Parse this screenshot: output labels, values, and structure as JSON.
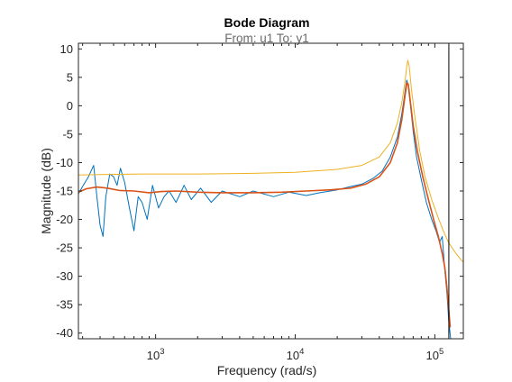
{
  "chart_data": {
    "type": "line",
    "title": "Bode Diagram",
    "subtitle": "From: u1  To: y1",
    "xlabel": "Frequency  (rad/s)",
    "ylabel": "Magnitude (dB)",
    "xscale": "log",
    "xlim": [
      280,
      160000
    ],
    "ylim": [
      -41,
      11
    ],
    "yticks": [
      10,
      5,
      0,
      -5,
      -10,
      -15,
      -20,
      -25,
      -30,
      -35,
      -40
    ],
    "xticks": [
      {
        "base": "10",
        "exp": "3",
        "value": 1000
      },
      {
        "base": "10",
        "exp": "4",
        "value": 10000
      },
      {
        "base": "10",
        "exp": "5",
        "value": 100000
      }
    ],
    "grid": false,
    "box": true,
    "vertical_line_x": 126000,
    "series": [
      {
        "color": "#0072BD",
        "points": [
          [
            280,
            -15.5
          ],
          [
            300,
            -14.2
          ],
          [
            330,
            -12.5
          ],
          [
            360,
            -10.5
          ],
          [
            380,
            -16
          ],
          [
            400,
            -21
          ],
          [
            420,
            -23
          ],
          [
            440,
            -16
          ],
          [
            470,
            -12
          ],
          [
            500,
            -12.5
          ],
          [
            530,
            -14
          ],
          [
            560,
            -11
          ],
          [
            600,
            -13.5
          ],
          [
            650,
            -18
          ],
          [
            700,
            -22
          ],
          [
            750,
            -16
          ],
          [
            800,
            -17
          ],
          [
            870,
            -20
          ],
          [
            950,
            -14
          ],
          [
            1050,
            -18
          ],
          [
            1150,
            -16
          ],
          [
            1250,
            -15
          ],
          [
            1400,
            -17
          ],
          [
            1600,
            -14
          ],
          [
            1800,
            -16.5
          ],
          [
            2100,
            -14.5
          ],
          [
            2500,
            -17
          ],
          [
            3000,
            -15
          ],
          [
            4000,
            -16
          ],
          [
            5000,
            -15
          ],
          [
            7000,
            -16
          ],
          [
            9000,
            -15.2
          ],
          [
            12000,
            -15.8
          ],
          [
            15000,
            -15.3
          ],
          [
            20000,
            -14.8
          ],
          [
            25000,
            -14.2
          ],
          [
            30000,
            -13.8
          ],
          [
            36000,
            -12.8
          ],
          [
            42000,
            -11.5
          ],
          [
            48000,
            -9
          ],
          [
            54000,
            -5.5
          ],
          [
            58000,
            -1.5
          ],
          [
            60000,
            1
          ],
          [
            62000,
            3.5
          ],
          [
            63000,
            4.5
          ],
          [
            64500,
            3.5
          ],
          [
            67000,
            0
          ],
          [
            70000,
            -4.5
          ],
          [
            74000,
            -9
          ],
          [
            80000,
            -13
          ],
          [
            87000,
            -17
          ],
          [
            95000,
            -20
          ],
          [
            102000,
            -22
          ],
          [
            108000,
            -24
          ],
          [
            113000,
            -23
          ],
          [
            118000,
            -29
          ],
          [
            122000,
            -33
          ],
          [
            126000,
            -38
          ],
          [
            130000,
            -41
          ]
        ]
      },
      {
        "color": "#D95319",
        "points": [
          [
            280,
            -15.2
          ],
          [
            320,
            -14.6
          ],
          [
            380,
            -14.3
          ],
          [
            450,
            -14.5
          ],
          [
            550,
            -14.9
          ],
          [
            700,
            -15
          ],
          [
            900,
            -15.3
          ],
          [
            1100,
            -15.1
          ],
          [
            1400,
            -15
          ],
          [
            2000,
            -15.2
          ],
          [
            3000,
            -15.3
          ],
          [
            5000,
            -15.3
          ],
          [
            8000,
            -15.2
          ],
          [
            12000,
            -15
          ],
          [
            18000,
            -14.8
          ],
          [
            25000,
            -14.5
          ],
          [
            32000,
            -13.8
          ],
          [
            40000,
            -12.5
          ],
          [
            48000,
            -10
          ],
          [
            54000,
            -6.5
          ],
          [
            58000,
            -2.5
          ],
          [
            61000,
            1.5
          ],
          [
            63000,
            4
          ],
          [
            64500,
            3.8
          ],
          [
            67000,
            0.5
          ],
          [
            70000,
            -3.5
          ],
          [
            75000,
            -8
          ],
          [
            82000,
            -12.5
          ],
          [
            90000,
            -16.5
          ],
          [
            98000,
            -20
          ],
          [
            106000,
            -23
          ],
          [
            113000,
            -26
          ],
          [
            118000,
            -28.5
          ],
          [
            122000,
            -32
          ],
          [
            126000,
            -36
          ],
          [
            129000,
            -39
          ]
        ]
      },
      {
        "color": "#EDB120",
        "points": [
          [
            280,
            -12.2
          ],
          [
            400,
            -12.1
          ],
          [
            800,
            -12
          ],
          [
            2000,
            -12
          ],
          [
            5000,
            -11.9
          ],
          [
            10000,
            -11.7
          ],
          [
            20000,
            -11.2
          ],
          [
            30000,
            -10.5
          ],
          [
            40000,
            -9
          ],
          [
            48000,
            -6.5
          ],
          [
            54000,
            -3
          ],
          [
            58000,
            0.5
          ],
          [
            61000,
            4
          ],
          [
            63000,
            7
          ],
          [
            64000,
            8
          ],
          [
            65500,
            7
          ],
          [
            68000,
            3
          ],
          [
            72000,
            -2
          ],
          [
            78000,
            -8
          ],
          [
            85000,
            -12.5
          ],
          [
            95000,
            -16.5
          ],
          [
            105000,
            -19.5
          ],
          [
            115000,
            -22
          ],
          [
            125000,
            -24
          ],
          [
            140000,
            -25.8
          ],
          [
            155000,
            -27.2
          ],
          [
            160000,
            -27.5
          ]
        ]
      }
    ]
  }
}
